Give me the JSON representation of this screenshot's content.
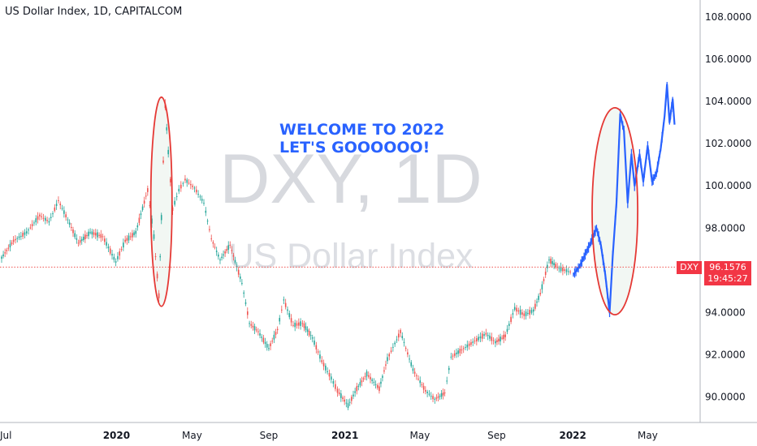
{
  "header": {
    "title": "US Dollar Index, 1D, CAPITALCOM"
  },
  "watermark": {
    "symbol": "DXY, 1D",
    "name": "US Dollar Index"
  },
  "annotation": {
    "text_line1": "WELCOME TO 2022",
    "text_line2": "LET'S GOOOOOO!",
    "color": "#2962ff"
  },
  "price_tag": {
    "symbol": "DXY",
    "price": "96.1576",
    "countdown": "19:45:27",
    "color": "#f23645"
  },
  "colors": {
    "up": "#26a69a",
    "down": "#ef5350",
    "projection": "#2962ff",
    "ellipse": "#e53935",
    "current_line": "#ef5350"
  },
  "chart_data": {
    "type": "line",
    "title": "US Dollar Index, 1D, CAPITALCOM",
    "xlabel": "",
    "ylabel": "",
    "x_ticks": [
      "Jul",
      "2020",
      "May",
      "Sep",
      "2021",
      "May",
      "Sep",
      "2022",
      "May"
    ],
    "y_ticks": [
      "90.0000",
      "92.0000",
      "94.0000",
      "96.0000",
      "98.0000",
      "100.0000",
      "102.0000",
      "104.0000",
      "106.0000",
      "108.0000"
    ],
    "ylim": [
      88.8,
      108.8
    ],
    "current_price": 96.1576,
    "series": [
      {
        "values": [
          [
            "2019-07-01",
            96.6
          ],
          [
            "2019-07-20",
            97.4
          ],
          [
            "2019-08-10",
            97.8
          ],
          [
            "2019-08-31",
            98.6
          ],
          [
            "2019-09-15",
            98.3
          ],
          [
            "2019-09-30",
            99.3
          ],
          [
            "2019-10-15",
            98.4
          ],
          [
            "2019-11-01",
            97.3
          ],
          [
            "2019-11-20",
            97.8
          ],
          [
            "2019-12-10",
            97.6
          ],
          [
            "2019-12-31",
            96.4
          ],
          [
            "2020-01-15",
            97.4
          ],
          [
            "2020-02-01",
            97.8
          ],
          [
            "2020-02-20",
            99.8
          ],
          [
            "2020-03-01",
            97.6
          ],
          [
            "2020-03-09",
            94.8
          ],
          [
            "2020-03-13",
            98.5
          ],
          [
            "2020-03-19",
            103.8
          ],
          [
            "2020-03-24",
            101.6
          ],
          [
            "2020-03-31",
            98.9
          ],
          [
            "2020-04-10",
            99.8
          ],
          [
            "2020-04-20",
            100.3
          ],
          [
            "2020-05-05",
            99.9
          ],
          [
            "2020-05-20",
            99.2
          ],
          [
            "2020-06-01",
            97.5
          ],
          [
            "2020-06-15",
            96.5
          ],
          [
            "2020-07-01",
            97.2
          ],
          [
            "2020-07-20",
            95.4
          ],
          [
            "2020-08-01",
            93.5
          ],
          [
            "2020-08-15",
            93.1
          ],
          [
            "2020-09-01",
            92.3
          ],
          [
            "2020-09-15",
            93.2
          ],
          [
            "2020-09-25",
            94.6
          ],
          [
            "2020-10-10",
            93.4
          ],
          [
            "2020-10-25",
            93.5
          ],
          [
            "2020-11-10",
            92.8
          ],
          [
            "2020-11-25",
            91.7
          ],
          [
            "2020-12-10",
            90.9
          ],
          [
            "2020-12-20",
            90.3
          ],
          [
            "2021-01-06",
            89.6
          ],
          [
            "2021-01-20",
            90.4
          ],
          [
            "2021-02-05",
            91.1
          ],
          [
            "2021-02-25",
            90.4
          ],
          [
            "2021-03-10",
            91.8
          ],
          [
            "2021-03-31",
            93.1
          ],
          [
            "2021-04-20",
            91.3
          ],
          [
            "2021-05-10",
            90.3
          ],
          [
            "2021-05-25",
            89.9
          ],
          [
            "2021-06-10",
            90.2
          ],
          [
            "2021-06-20",
            91.9
          ],
          [
            "2021-07-10",
            92.3
          ],
          [
            "2021-07-25",
            92.6
          ],
          [
            "2021-08-15",
            93.0
          ],
          [
            "2021-08-30",
            92.6
          ],
          [
            "2021-09-15",
            92.9
          ],
          [
            "2021-09-30",
            94.2
          ],
          [
            "2021-10-15",
            93.9
          ],
          [
            "2021-10-30",
            94.1
          ],
          [
            "2021-11-10",
            94.9
          ],
          [
            "2021-11-24",
            96.5
          ],
          [
            "2021-12-10",
            96.1
          ],
          [
            "2021-12-31",
            95.9
          ]
        ]
      },
      {
        "values": [
          [
            "2022-01-02",
            95.8
          ],
          [
            "2022-01-12",
            96.2
          ],
          [
            "2022-01-28",
            97.2
          ],
          [
            "2022-02-08",
            98.0
          ],
          [
            "2022-02-15",
            97.2
          ],
          [
            "2022-02-22",
            95.8
          ],
          [
            "2022-03-01",
            94.0
          ],
          [
            "2022-03-06",
            96.7
          ],
          [
            "2022-03-12",
            99.2
          ],
          [
            "2022-03-18",
            103.4
          ],
          [
            "2022-03-24",
            102.6
          ],
          [
            "2022-03-30",
            99.2
          ],
          [
            "2022-04-05",
            101.5
          ],
          [
            "2022-04-10",
            100.0
          ],
          [
            "2022-04-18",
            101.5
          ],
          [
            "2022-04-24",
            100.2
          ],
          [
            "2022-05-01",
            101.9
          ],
          [
            "2022-05-08",
            100.2
          ],
          [
            "2022-05-15",
            100.6
          ],
          [
            "2022-05-22",
            101.8
          ],
          [
            "2022-05-28",
            103.3
          ],
          [
            "2022-06-01",
            104.8
          ],
          [
            "2022-06-05",
            103.0
          ],
          [
            "2022-06-10",
            104.1
          ],
          [
            "2022-06-13",
            102.9
          ]
        ]
      }
    ],
    "highlights": [
      {
        "from": "2020-02-25",
        "to": "2020-03-30",
        "low": 94.3,
        "high": 104.2
      },
      {
        "from": "2022-02-01",
        "to": "2022-04-15",
        "low": 93.9,
        "high": 103.7
      }
    ]
  }
}
